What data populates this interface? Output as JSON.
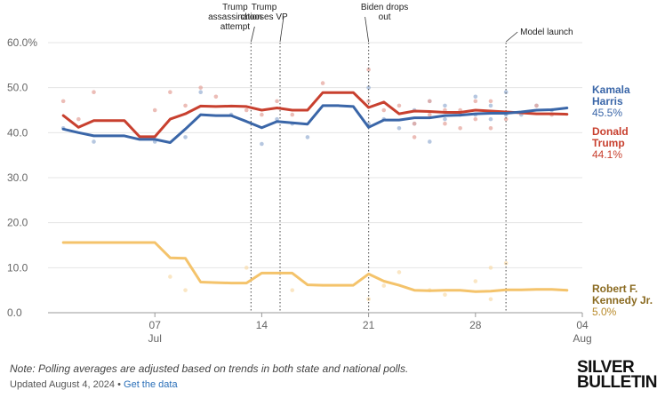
{
  "chart_data": {
    "type": "line",
    "title": "",
    "xlabel": "",
    "ylabel": "",
    "x_domain": [
      0,
      34
    ],
    "ylim": [
      0,
      60
    ],
    "y_ticks": [
      {
        "value": 0,
        "label": "0.0"
      },
      {
        "value": 10,
        "label": "10.0"
      },
      {
        "value": 20,
        "label": "20.0"
      },
      {
        "value": 30,
        "label": "30.0"
      },
      {
        "value": 40,
        "label": "40.0"
      },
      {
        "value": 50,
        "label": "50.0"
      },
      {
        "value": 60,
        "label": "60.0%"
      }
    ],
    "x_ticks": [
      {
        "x": 7,
        "label": "07",
        "sub": "Jul"
      },
      {
        "x": 14,
        "label": "14",
        "sub": ""
      },
      {
        "x": 21,
        "label": "21",
        "sub": ""
      },
      {
        "x": 28,
        "label": "28",
        "sub": ""
      },
      {
        "x": 35,
        "label": "04",
        "sub": "Aug"
      }
    ],
    "events": [
      {
        "x": 13.3,
        "lines": [
          "Trump",
          "assassination",
          "attempt"
        ]
      },
      {
        "x": 15.2,
        "lines": [
          "Trump",
          "chooses VP"
        ]
      },
      {
        "x": 21.0,
        "lines": [
          "Biden drops",
          "out"
        ]
      },
      {
        "x": 30.0,
        "lines": [
          "Model launch"
        ]
      }
    ],
    "series": [
      {
        "name": "Kamala Harris",
        "name_lines": [
          "Kamala",
          "Harris"
        ],
        "value_label": "45.5%",
        "color": "#3a66a8",
        "dot_color": "#9db4d6",
        "points": [
          [
            1,
            40.8
          ],
          [
            2,
            40
          ],
          [
            3,
            39.3
          ],
          [
            4,
            39.3
          ],
          [
            5,
            39.3
          ],
          [
            6,
            38.5
          ],
          [
            7,
            38.5
          ],
          [
            8,
            37.8
          ],
          [
            9,
            40.8
          ],
          [
            10,
            44
          ],
          [
            11,
            43.8
          ],
          [
            12,
            43.8
          ],
          [
            13,
            42.5
          ],
          [
            14,
            41.1
          ],
          [
            15,
            42.5
          ],
          [
            16,
            42.2
          ],
          [
            17,
            41.9
          ],
          [
            18,
            46
          ],
          [
            19,
            46
          ],
          [
            20,
            45.8
          ],
          [
            21,
            41.2
          ],
          [
            22,
            42.8
          ],
          [
            23,
            42.8
          ],
          [
            24,
            43.3
          ],
          [
            25,
            43.3
          ],
          [
            26,
            43.8
          ],
          [
            27,
            43.9
          ],
          [
            28,
            44.2
          ],
          [
            29,
            44.3
          ],
          [
            30,
            44.3
          ],
          [
            31,
            44.6
          ],
          [
            32,
            45
          ],
          [
            33,
            45.1
          ],
          [
            34,
            45.5
          ]
        ]
      },
      {
        "name": "Donald Trump",
        "name_lines": [
          "Donald",
          "Trump"
        ],
        "value_label": "44.1%",
        "color": "#c8402f",
        "dot_color": "#e6a79f",
        "points": [
          [
            1,
            43.8
          ],
          [
            2,
            41.2
          ],
          [
            3,
            42.7
          ],
          [
            4,
            42.7
          ],
          [
            5,
            42.7
          ],
          [
            6,
            39.1
          ],
          [
            7,
            39.1
          ],
          [
            8,
            43
          ],
          [
            9,
            44.2
          ],
          [
            10,
            45.9
          ],
          [
            11,
            45.8
          ],
          [
            12,
            45.9
          ],
          [
            13,
            45.8
          ],
          [
            14,
            45
          ],
          [
            15,
            45.5
          ],
          [
            16,
            45
          ],
          [
            17,
            45
          ],
          [
            18,
            48.9
          ],
          [
            19,
            48.9
          ],
          [
            20,
            48.9
          ],
          [
            21,
            45.6
          ],
          [
            22,
            46.8
          ],
          [
            23,
            44.2
          ],
          [
            24,
            44.8
          ],
          [
            25,
            44.7
          ],
          [
            26,
            44.5
          ],
          [
            27,
            44.5
          ],
          [
            28,
            45
          ],
          [
            29,
            44.8
          ],
          [
            30,
            44.6
          ],
          [
            31,
            44.4
          ],
          [
            32,
            44.2
          ],
          [
            33,
            44.2
          ],
          [
            34,
            44.1
          ]
        ]
      },
      {
        "name": "Robert F. Kennedy Jr.",
        "name_lines": [
          "Robert F.",
          "Kennedy Jr."
        ],
        "value_label": "5.0%",
        "color": "#f4c36b",
        "dot_color": "#f8ddb0",
        "points": [
          [
            1,
            15.6
          ],
          [
            2,
            15.6
          ],
          [
            3,
            15.6
          ],
          [
            4,
            15.6
          ],
          [
            5,
            15.6
          ],
          [
            6,
            15.6
          ],
          [
            7,
            15.6
          ],
          [
            8,
            12.2
          ],
          [
            9,
            12.1
          ],
          [
            10,
            6.8
          ],
          [
            11,
            6.7
          ],
          [
            12,
            6.6
          ],
          [
            13,
            6.6
          ],
          [
            14,
            8.8
          ],
          [
            15,
            8.8
          ],
          [
            16,
            8.8
          ],
          [
            17,
            6.2
          ],
          [
            18,
            6.1
          ],
          [
            19,
            6.1
          ],
          [
            20,
            6.1
          ],
          [
            21,
            8.6
          ],
          [
            22,
            7
          ],
          [
            23,
            6.1
          ],
          [
            24,
            5
          ],
          [
            25,
            4.9
          ],
          [
            26,
            5
          ],
          [
            27,
            5
          ],
          [
            28,
            4.7
          ],
          [
            29,
            4.8
          ],
          [
            30,
            5.1
          ],
          [
            31,
            5.1
          ],
          [
            32,
            5.2
          ],
          [
            33,
            5.2
          ],
          [
            34,
            5
          ]
        ]
      }
    ],
    "poll_dots": {
      "Kamala Harris": [
        [
          1,
          41
        ],
        [
          3,
          38
        ],
        [
          7,
          38
        ],
        [
          9,
          39
        ],
        [
          10,
          49
        ],
        [
          12,
          44
        ],
        [
          14,
          37.5
        ],
        [
          15,
          43
        ],
        [
          16,
          42
        ],
        [
          17,
          39
        ],
        [
          21,
          42
        ],
        [
          21,
          50
        ],
        [
          22,
          43
        ],
        [
          23,
          41
        ],
        [
          24,
          45
        ],
        [
          24,
          42
        ],
        [
          25,
          47
        ],
        [
          25,
          38
        ],
        [
          26,
          43
        ],
        [
          26,
          46
        ],
        [
          27,
          44
        ],
        [
          28,
          44
        ],
        [
          28,
          48
        ],
        [
          29,
          43
        ],
        [
          29,
          46
        ],
        [
          30,
          44
        ],
        [
          30,
          49
        ],
        [
          31,
          44
        ],
        [
          32,
          46
        ],
        [
          33,
          45
        ]
      ],
      "Donald Trump": [
        [
          1,
          47
        ],
        [
          2,
          43
        ],
        [
          3,
          49
        ],
        [
          7,
          45
        ],
        [
          8,
          49
        ],
        [
          9,
          46
        ],
        [
          10,
          50
        ],
        [
          11,
          48
        ],
        [
          13,
          45
        ],
        [
          14,
          44
        ],
        [
          15,
          47
        ],
        [
          16,
          44
        ],
        [
          18,
          51
        ],
        [
          21,
          54
        ],
        [
          21,
          47
        ],
        [
          22,
          45
        ],
        [
          23,
          46
        ],
        [
          24,
          42
        ],
        [
          24,
          39
        ],
        [
          25,
          47
        ],
        [
          25,
          44
        ],
        [
          26,
          45
        ],
        [
          26,
          42
        ],
        [
          27,
          41
        ],
        [
          27,
          45
        ],
        [
          28,
          47
        ],
        [
          28,
          43
        ],
        [
          29,
          47
        ],
        [
          29,
          41
        ],
        [
          30,
          43
        ],
        [
          32,
          46
        ],
        [
          33,
          44
        ]
      ],
      "Robert F. Kennedy Jr.": [
        [
          8,
          8
        ],
        [
          9,
          5
        ],
        [
          13,
          10
        ],
        [
          16,
          5
        ],
        [
          21,
          3
        ],
        [
          22,
          6
        ],
        [
          23,
          9
        ],
        [
          25,
          5
        ],
        [
          26,
          4
        ],
        [
          28,
          7
        ],
        [
          29,
          10
        ],
        [
          29,
          3
        ],
        [
          30,
          11
        ]
      ]
    }
  },
  "footer": {
    "note": "Note: Polling averages are adjusted based on trends in both state and national polls.",
    "updated": "Updated August 4, 2024 • ",
    "link": "Get the data"
  },
  "brand": {
    "line1": "SILVER",
    "line2": "BULLETIN"
  }
}
